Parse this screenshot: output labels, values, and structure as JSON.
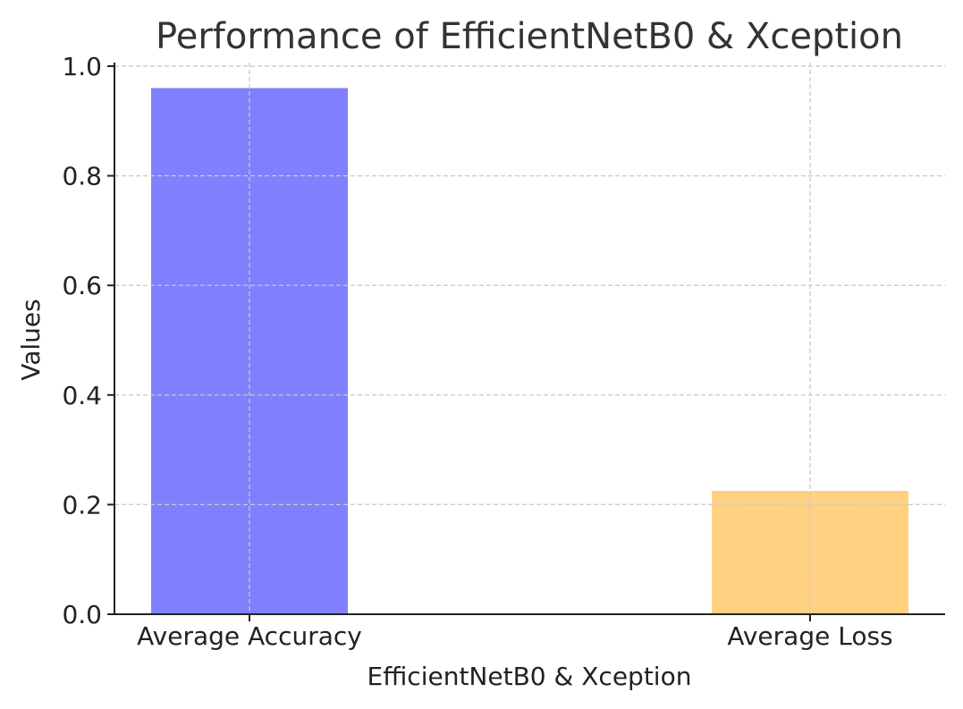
{
  "chart_data": {
    "type": "bar",
    "title": "Performance of EfficientNetB0 & Xception",
    "xlabel": "EfficientNetB0 & Xception",
    "ylabel": "Values",
    "categories": [
      "Average Accuracy",
      "Average Loss"
    ],
    "values": [
      0.96,
      0.225
    ],
    "colors": [
      "#8080ff",
      "#ffd180"
    ],
    "ylim": [
      0,
      1.0
    ],
    "yticks": [
      0.0,
      0.2,
      0.4,
      0.6,
      0.8,
      1.0
    ],
    "ytick_labels": [
      "0.0",
      "0.2",
      "0.4",
      "0.6",
      "0.8",
      "1.0"
    ],
    "grid": true,
    "legend": "none"
  }
}
